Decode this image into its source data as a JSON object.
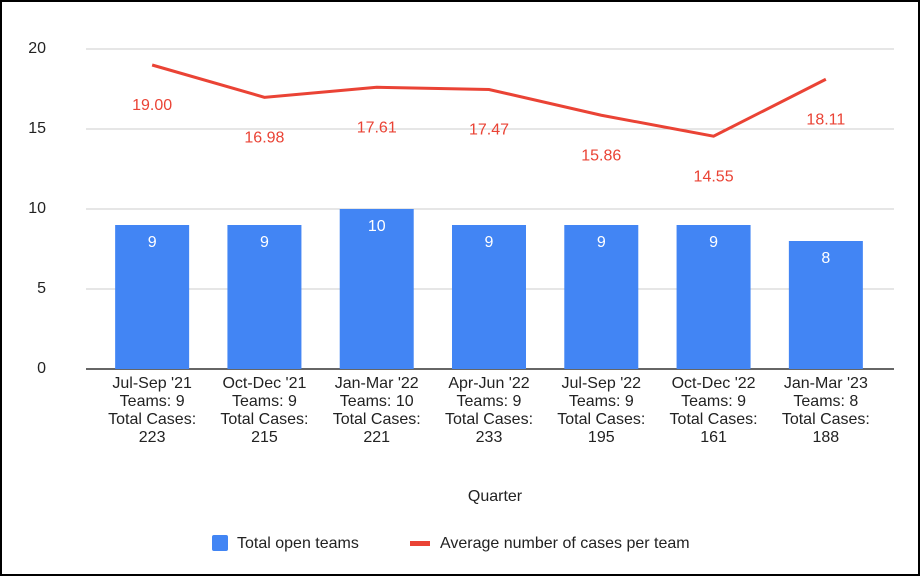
{
  "chart_data": {
    "type": "bar",
    "x_label": "Quarter",
    "categories": [
      [
        "Jul-Sep '21",
        "Teams: 9",
        "Total Cases:",
        "223"
      ],
      [
        "Oct-Dec '21",
        "Teams: 9",
        "Total Cases:",
        "215"
      ],
      [
        "Jan-Mar '22",
        "Teams: 10",
        "Total Cases:",
        "221"
      ],
      [
        "Apr-Jun '22",
        "Teams: 9",
        "Total Cases:",
        "233"
      ],
      [
        "Jul-Sep '22",
        "Teams: 9",
        "Total Cases:",
        "195"
      ],
      [
        "Oct-Dec '22",
        "Teams: 9",
        "Total Cases:",
        "161"
      ],
      [
        "Jan-Mar '23",
        "Teams: 8",
        "Total Cases:",
        "188"
      ]
    ],
    "series": [
      {
        "name": "Total open teams",
        "type": "bar",
        "color": "#4285f4",
        "values": [
          9,
          9,
          10,
          9,
          9,
          9,
          8
        ]
      },
      {
        "name": "Average number of cases per team",
        "type": "line",
        "color": "#ea4335",
        "values": [
          19,
          16.98,
          17.61,
          17.47,
          15.86,
          14.55,
          18.11
        ],
        "value_labels": [
          "19.00",
          "16.98",
          "17.61",
          "17.47",
          "15.86",
          "14.55",
          "18.11"
        ]
      }
    ],
    "ylim": [
      0,
      20
    ],
    "yticks": [
      0,
      5,
      10,
      15,
      20
    ],
    "grid": true,
    "legend": "bottom"
  }
}
